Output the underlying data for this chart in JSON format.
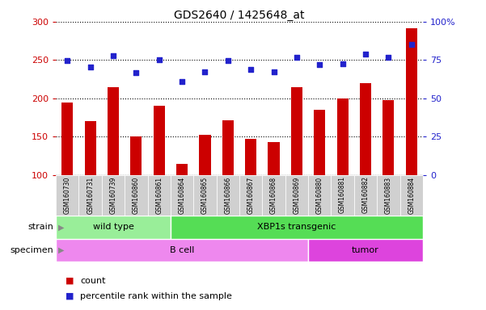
{
  "title": "GDS2640 / 1425648_at",
  "samples": [
    "GSM160730",
    "GSM160731",
    "GSM160739",
    "GSM160860",
    "GSM160861",
    "GSM160864",
    "GSM160865",
    "GSM160866",
    "GSM160867",
    "GSM160868",
    "GSM160869",
    "GSM160880",
    "GSM160881",
    "GSM160882",
    "GSM160883",
    "GSM160884"
  ],
  "counts": [
    195,
    170,
    215,
    150,
    190,
    115,
    153,
    172,
    147,
    143,
    215,
    185,
    200,
    220,
    198,
    291
  ],
  "percentile_raw": [
    249,
    241,
    256,
    234,
    250,
    222,
    235,
    249,
    238,
    235,
    254,
    244,
    245,
    258,
    254,
    270
  ],
  "ylim_left": [
    100,
    300
  ],
  "ylim_right": [
    0,
    100
  ],
  "yticks_left": [
    100,
    150,
    200,
    250,
    300
  ],
  "yticks_right": [
    0,
    25,
    50,
    75,
    100
  ],
  "bar_color": "#cc0000",
  "dot_color": "#2222cc",
  "strain_groups": [
    {
      "label": "wild type",
      "start": 0,
      "end": 5,
      "color": "#99ee99"
    },
    {
      "label": "XBP1s transgenic",
      "start": 5,
      "end": 16,
      "color": "#55dd55"
    }
  ],
  "specimen_groups": [
    {
      "label": "B cell",
      "start": 0,
      "end": 11,
      "color": "#ee88ee"
    },
    {
      "label": "tumor",
      "start": 11,
      "end": 16,
      "color": "#dd44dd"
    }
  ],
  "strain_label": "strain",
  "specimen_label": "specimen",
  "legend_count_label": "count",
  "legend_pct_label": "percentile rank within the sample",
  "background_color": "#ffffff",
  "plot_bg_color": "#ffffff",
  "right_axis_color": "#2222cc",
  "left_axis_color": "#cc0000"
}
